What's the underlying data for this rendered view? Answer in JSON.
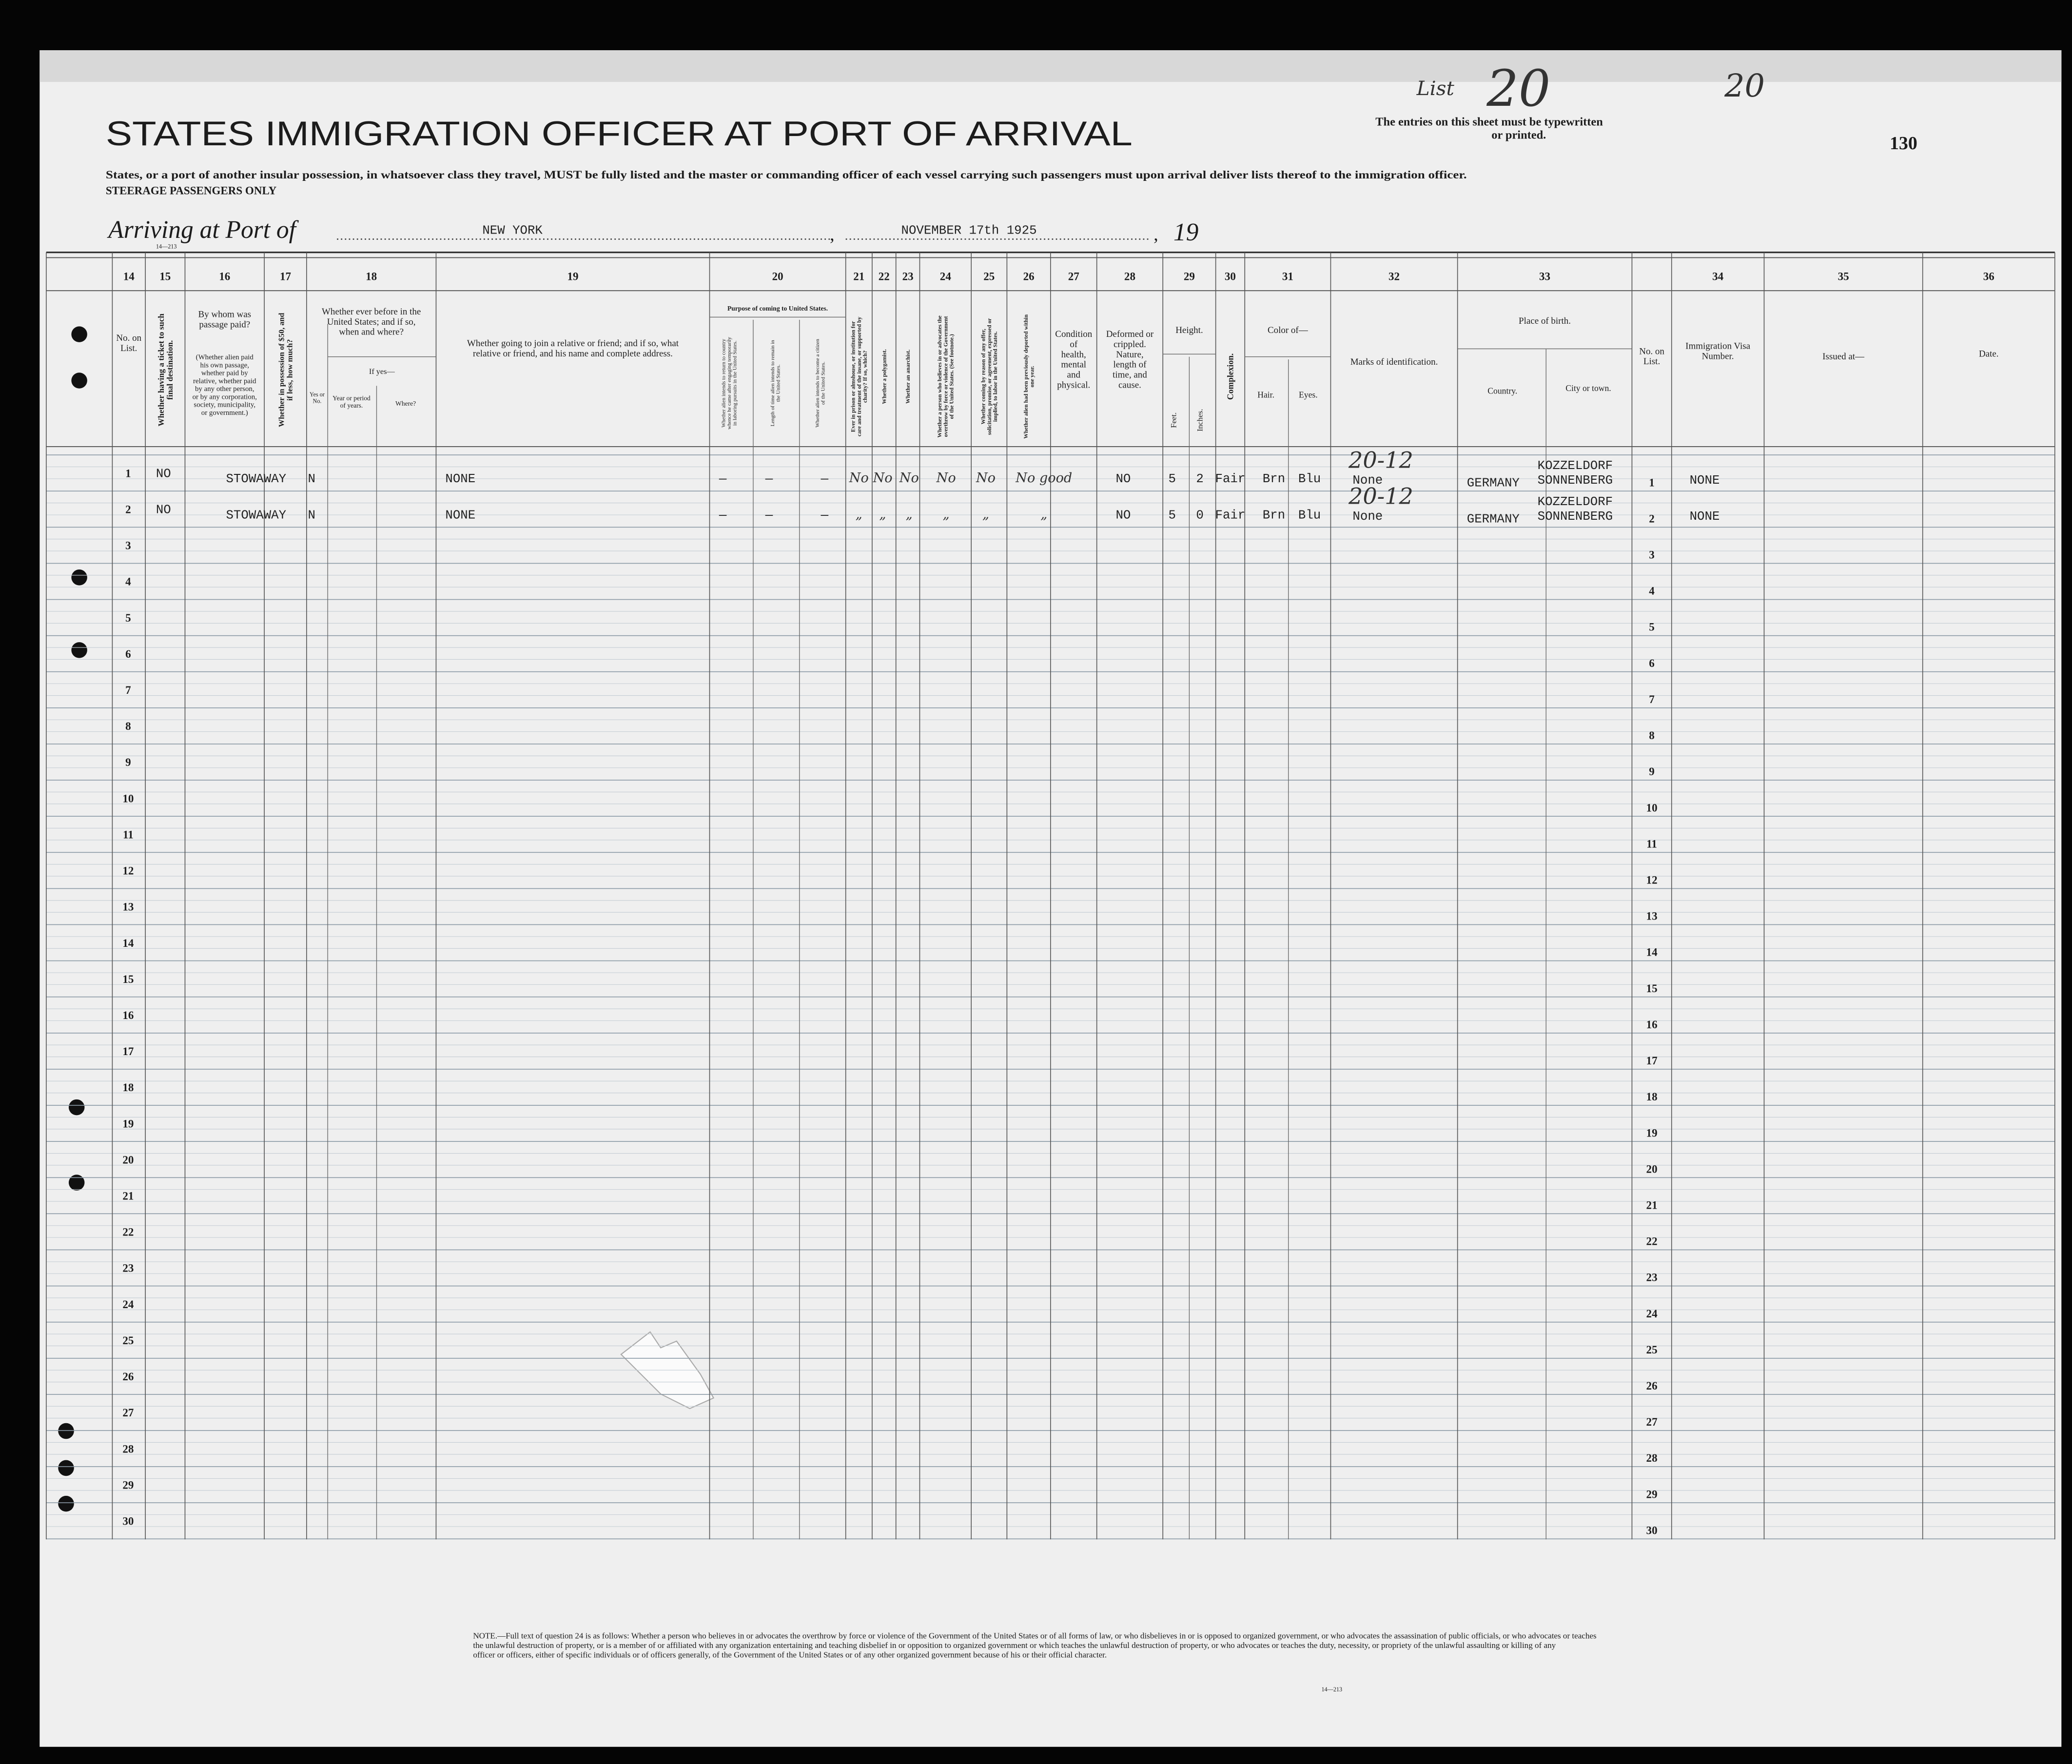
{
  "header": {
    "list_label": "List",
    "list_number": "20",
    "corner_number": "20",
    "page_number": "130",
    "title": "STATES IMMIGRATION OFFICER AT PORT OF ARRIVAL",
    "note": "The entries on this sheet must be typewritten or printed.",
    "instruction": "States, or a port of another insular possession, in whatsoever class they travel, MUST be fully listed and the master or commanding officer of each vessel carrying such passengers must upon arrival deliver lists thereof to the immigration officer.",
    "steerage": "STEERAGE PASSENGERS ONLY",
    "arriving_label": "Arriving at Port of",
    "port": "NEW YORK",
    "date": "NOVEMBER 17th 1925",
    "year_prefix": "19",
    "form_code": "14—213"
  },
  "columns": [
    {
      "number": 14,
      "heading": "No. on List."
    },
    {
      "number": 15,
      "heading": "Whether having a ticket to such final destination."
    },
    {
      "number": 16,
      "heading": "By whom was passage paid?",
      "note": "(Whether alien paid his own passage, whether paid by relative, whether paid by any other person, or by any corporation, society, municipality, or government.)"
    },
    {
      "number": 17,
      "heading": "Whether in possession of $50, and if less, how much?"
    },
    {
      "number": 18,
      "heading": "Whether ever before in the United States; and if so, when and where?",
      "subheadings": [
        "Yes or No.",
        "If yes—",
        "Year or period of years.",
        "Where?"
      ]
    },
    {
      "number": 19,
      "heading": "Whether going to join a relative or friend; and if so, what relative or friend, and his name and complete address."
    },
    {
      "number": 20,
      "heading": "Purpose of coming to United States.",
      "subheadings": [
        "Whether alien intends to return to country whence he came after engaging temporarily in laboring pursuits in the United States.",
        "Length of time alien intends to remain in the United States.",
        "Whether alien intends to become a citizen of the United States."
      ]
    },
    {
      "number": 21,
      "heading": "Ever in prison or almshouse, or institution for care and treatment of the insane, or supported by charity? If so, which?"
    },
    {
      "number": 22,
      "heading": "Whether a polygamist."
    },
    {
      "number": 23,
      "heading": "Whether an anarchist."
    },
    {
      "number": 24,
      "heading": "Whether a person who believes in or advocates the overthrow by force or violence of the Government of the United States. (See footnote.)"
    },
    {
      "number": 25,
      "heading": "Whether coming by reason of any offer, solicitation, promise, or agreement, expressed or implied, to labor in the United States."
    },
    {
      "number": 26,
      "heading": "Whether alien had been previously deported within one year."
    },
    {
      "number": 27,
      "heading": "Condition of health, mental and physical."
    },
    {
      "number": 28,
      "heading": "Deformed or crippled. Nature, length of time, and cause."
    },
    {
      "number": 29,
      "heading": "Height.",
      "subheadings": [
        "Feet.",
        "Inches."
      ]
    },
    {
      "number": 30,
      "heading": "Complexion."
    },
    {
      "number": 31,
      "heading": "Color of—",
      "subheadings": [
        "Hair.",
        "Eyes."
      ]
    },
    {
      "number": 32,
      "heading": "Marks of identification."
    },
    {
      "number": 33,
      "heading": "Place of birth.",
      "subheadings": [
        "Country.",
        "City or town."
      ]
    },
    {
      "number": 34,
      "heading": "Immigration Visa Number."
    },
    {
      "number": 35,
      "heading": "Issued at—"
    },
    {
      "number": 36,
      "heading": "Date."
    }
  ],
  "right_no_heading": "No. on List.",
  "row_numbers": [
    1,
    2,
    3,
    4,
    5,
    6,
    7,
    8,
    9,
    10,
    11,
    12,
    13,
    14,
    15,
    16,
    17,
    18,
    19,
    20,
    21,
    22,
    23,
    24,
    25,
    26,
    27,
    28,
    29,
    30
  ],
  "entries": [
    {
      "ticket": "NO",
      "paid_by": "STOWAWAY",
      "money": "N",
      "join": "NONE",
      "return": "—",
      "length": "—",
      "citizen": "—",
      "prison": "No",
      "polygamist": "No",
      "anarchist": "No",
      "overthrow": "No",
      "offer": "No",
      "deported": "No good",
      "deformed": "NO",
      "feet": "5",
      "inches": "2",
      "complexion": "Fair",
      "hair": "Brn",
      "eyes": "Blu",
      "marks": "None",
      "marks_note": "20-12",
      "country": "GERMANY",
      "city": "KOZZELDORF SONNENBERG",
      "visa": "NONE"
    },
    {
      "ticket": "NO",
      "paid_by": "STOWAWAY",
      "money": "N",
      "join": "NONE",
      "return": "—",
      "length": "—",
      "citizen": "—",
      "prison": "„",
      "polygamist": "„",
      "anarchist": "„",
      "overthrow": "„",
      "offer": "„",
      "deported": "„",
      "deformed": "NO",
      "feet": "5",
      "inches": "0",
      "complexion": "Fair",
      "hair": "Brn",
      "eyes": "Blu",
      "marks": "None",
      "marks_note": "20-12",
      "country": "GERMANY",
      "city": "KOZZELDORF SONNENBERG",
      "visa": "NONE"
    }
  ],
  "footer": {
    "note": "NOTE.—Full text of question 24 is as follows: Whether a person who believes in or advocates the overthrow by force or violence of the Government of the United States or of all forms of law, or who disbelieves in or is opposed to organized government, or who advocates the assassination of public officials, or who advocates or teaches the unlawful destruction of property, or is a member of or affiliated with any organization entertaining and teaching disbelief in or opposition to organized government or which teaches the unlawful destruction of property, or who advocates or teaches the duty, necessity, or propriety of the unlawful assaulting or killing of any officer or officers, either of specific individuals or of officers generally, of the Government of the United States or of any other organized government because of his or their official character."
  }
}
